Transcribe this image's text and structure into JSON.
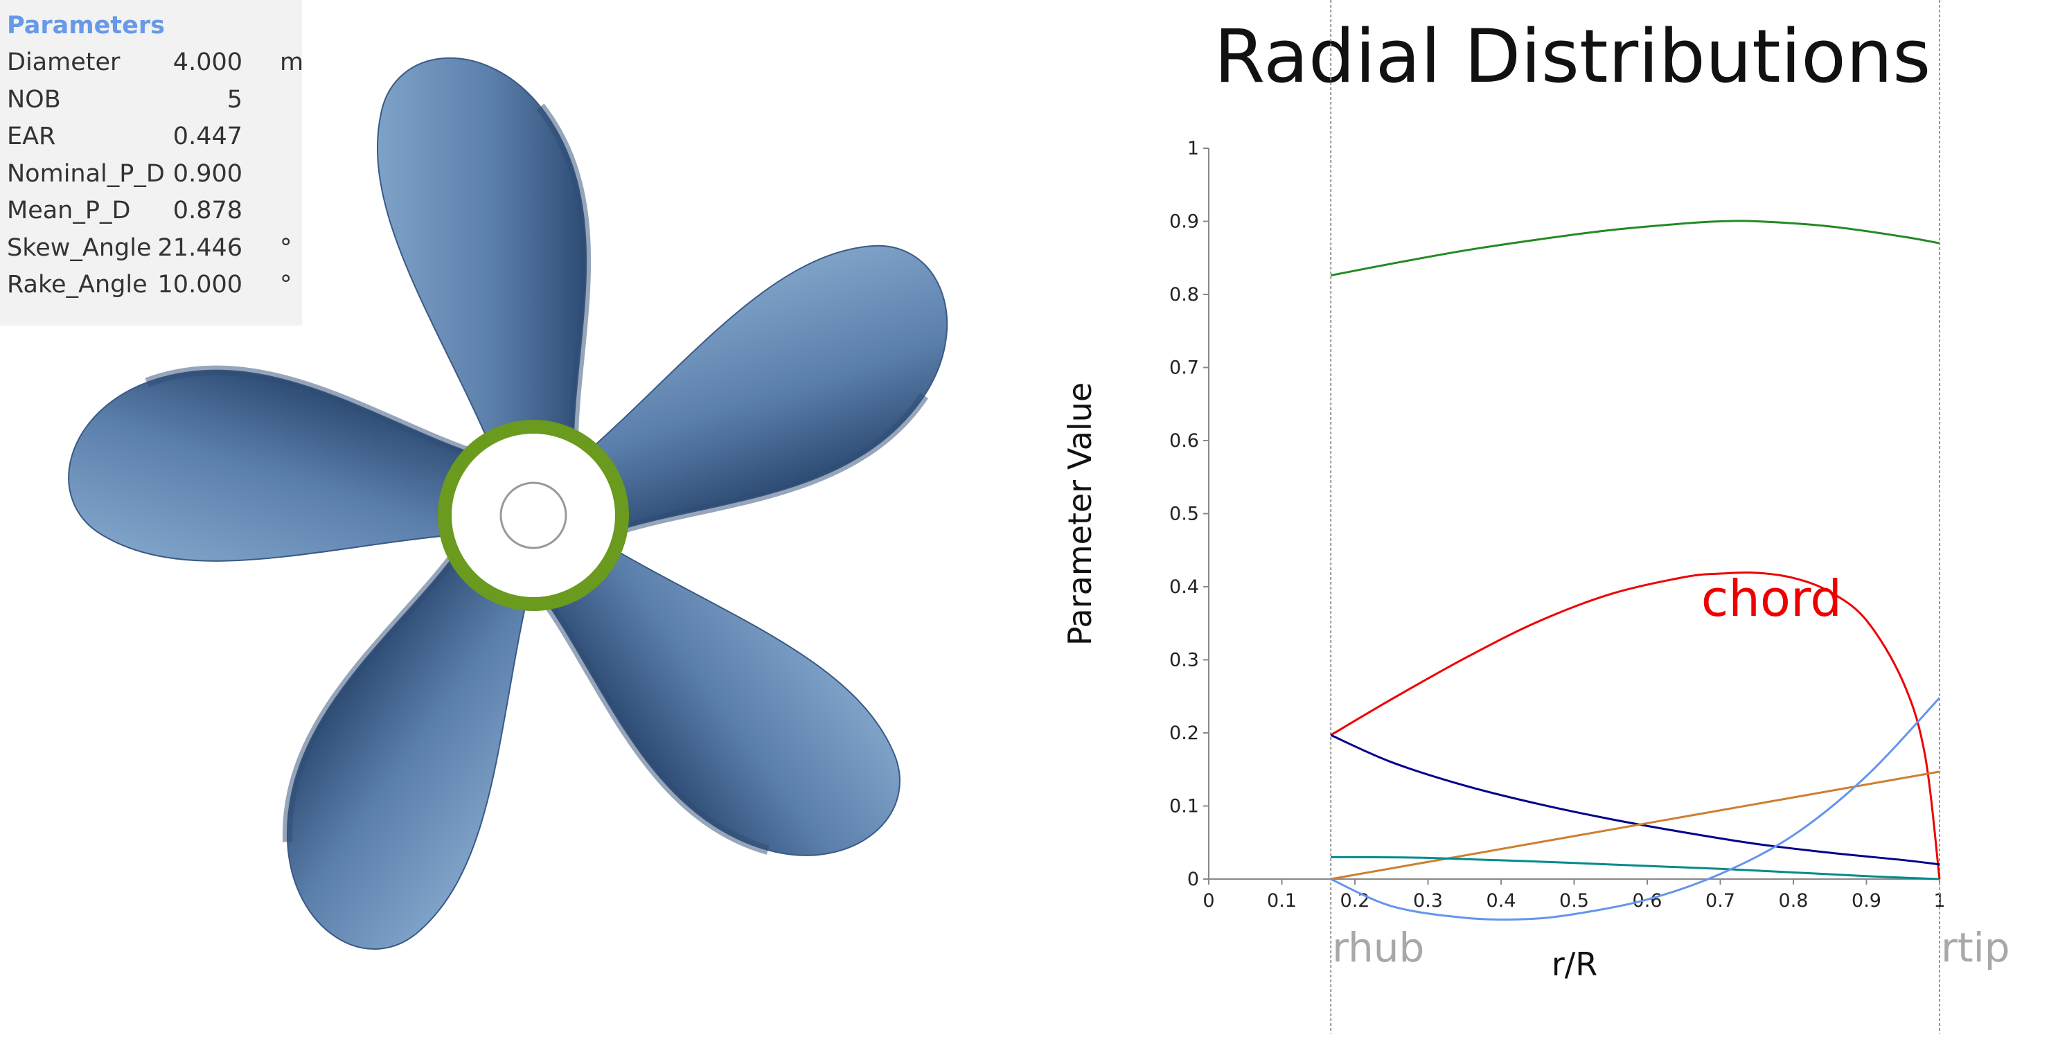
{
  "parameters_panel": {
    "title": "Parameters",
    "rows": [
      {
        "name": "Diameter",
        "value": "4.000",
        "unit": "m"
      },
      {
        "name": "NOB",
        "value": "5",
        "unit": ""
      },
      {
        "name": "EAR",
        "value": "0.447",
        "unit": ""
      },
      {
        "name": "Nominal_P_D",
        "value": "0.900",
        "unit": ""
      },
      {
        "name": "Mean_P_D",
        "value": "0.878",
        "unit": ""
      },
      {
        "name": "Skew_Angle",
        "value": "21.446",
        "unit": "°"
      },
      {
        "name": "Rake_Angle",
        "value": "10.000",
        "unit": "°"
      }
    ]
  },
  "propeller": {
    "blade_count": 5,
    "blade_color": "#5b7fab",
    "blade_dark_color": "#2e4c74",
    "hub_fillet_color": "#6a9a1e",
    "hub_color": "#ffffff"
  },
  "chart_data": {
    "type": "line",
    "title": "Radial Distributions",
    "xlabel": "r/R",
    "ylabel": "Parameter Value",
    "xlim": [
      0,
      1
    ],
    "ylim": [
      0,
      1
    ],
    "xticks": [
      0,
      0.1,
      0.2,
      0.3,
      0.4,
      0.5,
      0.6,
      0.7,
      0.8,
      0.9,
      1
    ],
    "yticks": [
      0,
      0.1,
      0.2,
      0.3,
      0.4,
      0.5,
      0.6,
      0.7,
      0.8,
      0.9,
      1
    ],
    "grid": false,
    "reference_lines": [
      {
        "label": "rhub",
        "x": 0.167
      },
      {
        "label": "rtip",
        "x": 1.0
      }
    ],
    "annotations": [
      {
        "text": "chord",
        "x": 0.77,
        "y": 0.36,
        "color": "#ee0000"
      }
    ],
    "series": [
      {
        "color": "#228b22",
        "x": [
          0.167,
          0.25,
          0.35,
          0.45,
          0.55,
          0.65,
          0.7,
          0.75,
          0.85,
          0.95,
          1.0
        ],
        "y": [
          0.826,
          0.842,
          0.86,
          0.875,
          0.888,
          0.897,
          0.9,
          0.9,
          0.893,
          0.879,
          0.87
        ]
      },
      {
        "color": "#ee0000",
        "x": [
          0.167,
          0.25,
          0.35,
          0.45,
          0.55,
          0.65,
          0.7,
          0.75,
          0.8,
          0.85,
          0.9,
          0.95,
          0.98,
          1.0
        ],
        "y": [
          0.197,
          0.246,
          0.302,
          0.352,
          0.39,
          0.413,
          0.418,
          0.419,
          0.412,
          0.393,
          0.354,
          0.27,
          0.17,
          0.0
        ]
      },
      {
        "color": "#00008b",
        "x": [
          0.167,
          0.25,
          0.35,
          0.45,
          0.55,
          0.65,
          0.75,
          0.85,
          0.95,
          1.0
        ],
        "y": [
          0.197,
          0.16,
          0.128,
          0.103,
          0.082,
          0.064,
          0.048,
          0.036,
          0.026,
          0.02
        ]
      },
      {
        "color": "#cd7f32",
        "x": [
          0.167,
          1.0
        ],
        "y": [
          0.0,
          0.147
        ]
      },
      {
        "color": "#008b8b",
        "x": [
          0.167,
          0.3,
          0.5,
          0.7,
          0.9,
          1.0
        ],
        "y": [
          0.03,
          0.029,
          0.022,
          0.014,
          0.004,
          0.0
        ]
      },
      {
        "color": "#6495ed",
        "x": [
          0.167,
          0.25,
          0.35,
          0.43,
          0.5,
          0.6,
          0.7,
          0.8,
          0.9,
          1.0
        ],
        "y": [
          0.0,
          -0.037,
          -0.053,
          -0.055,
          -0.048,
          -0.028,
          0.007,
          0.06,
          0.141,
          0.248
        ]
      }
    ]
  }
}
